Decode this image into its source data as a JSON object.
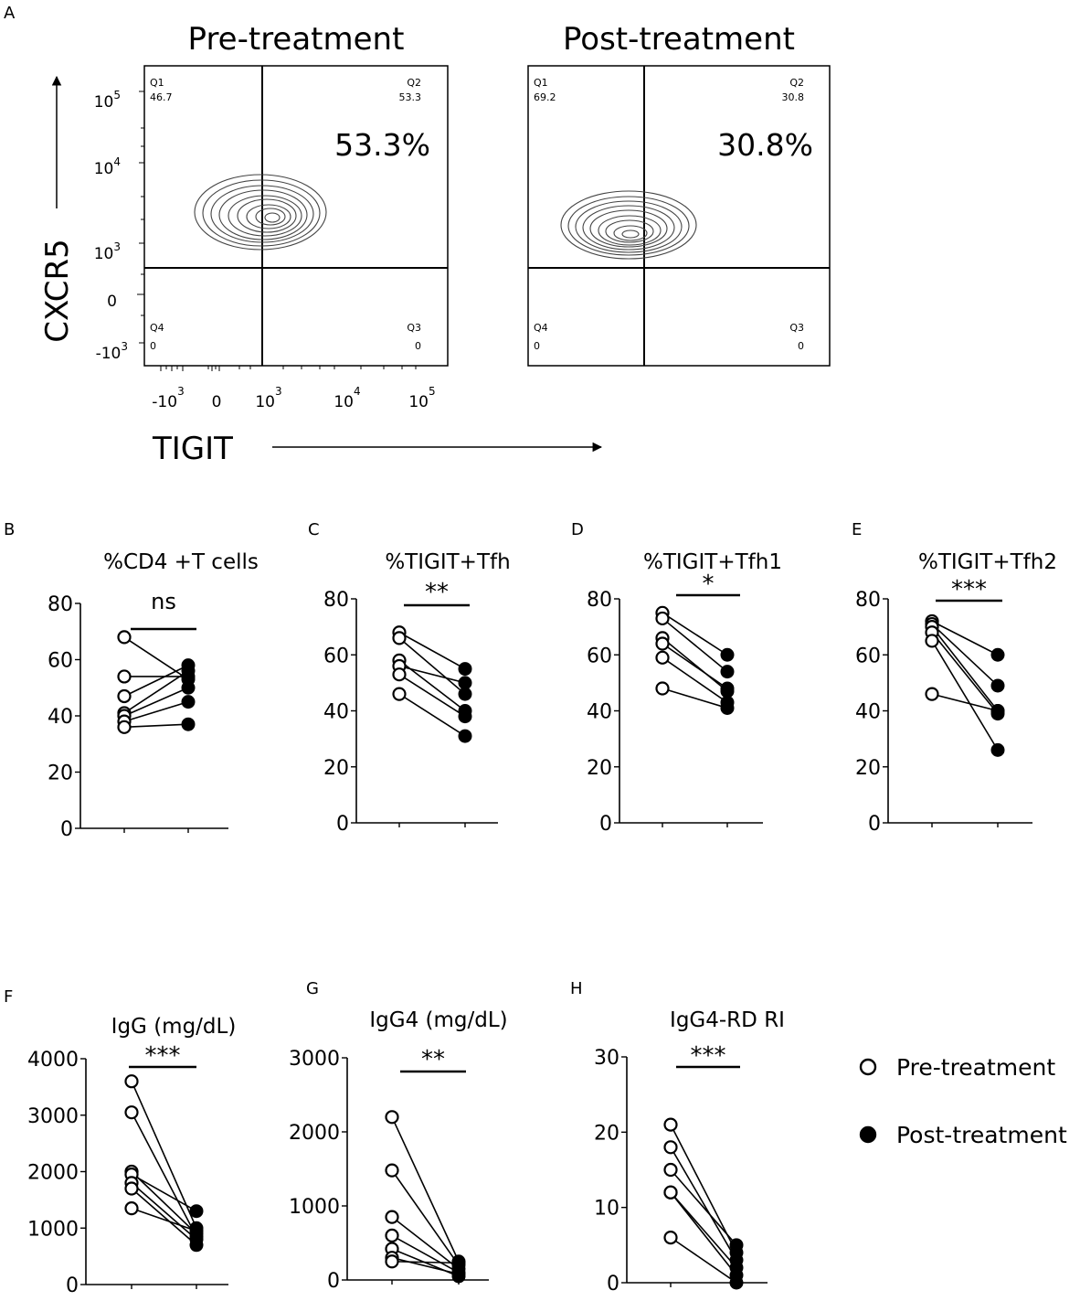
{
  "panel_a": {
    "letter": "A",
    "y_axis_label": "CXCR5",
    "x_axis_label": "TIGIT",
    "y_ticks": [
      {
        "base": "10",
        "exp": "5"
      },
      {
        "base": "10",
        "exp": "4"
      },
      {
        "base": "10",
        "exp": "3"
      },
      {
        "base": "0",
        "exp": ""
      },
      {
        "base": "-10",
        "exp": "3"
      }
    ],
    "x_ticks": [
      {
        "base": "-10",
        "exp": "3"
      },
      {
        "base": "0",
        "exp": ""
      },
      {
        "base": "10",
        "exp": "3"
      },
      {
        "base": "10",
        "exp": "4"
      },
      {
        "base": "10",
        "exp": "5"
      }
    ],
    "plots": [
      {
        "title": "Pre-treatment",
        "q1_label": "Q1",
        "q1_value": "46.7",
        "q2_label": "Q2",
        "q2_value": "53.3",
        "q3_label": "Q3",
        "q3_value": "0",
        "q4_label": "Q4",
        "q4_value": "0",
        "highlight": "53.3%"
      },
      {
        "title": "Post-treatment",
        "q1_label": "Q1",
        "q1_value": "69.2",
        "q2_label": "Q2",
        "q2_value": "30.8",
        "q3_label": "Q3",
        "q3_value": "0",
        "q4_label": "Q4",
        "q4_value": "0",
        "highlight": "30.8%"
      }
    ]
  },
  "legend": {
    "pre_label": "Pre-treatment",
    "post_label": "Post-treatment"
  },
  "chart_data": [
    {
      "letter": "B",
      "type": "scatter",
      "title": "%CD4 +T cells",
      "significance": "ns",
      "ylim": [
        0,
        80
      ],
      "yticks": [
        0,
        20,
        40,
        60,
        80
      ],
      "series": [
        {
          "name": "Pre-treatment",
          "values": [
            68,
            54,
            47,
            41,
            40,
            38,
            36
          ]
        },
        {
          "name": "Post-treatment",
          "values": [
            53,
            54,
            58,
            56,
            50,
            45,
            37
          ]
        }
      ]
    },
    {
      "letter": "C",
      "type": "scatter",
      "title": "%TIGIT+Tfh",
      "significance": "**",
      "ylim": [
        0,
        80
      ],
      "yticks": [
        0,
        20,
        40,
        60,
        80
      ],
      "series": [
        {
          "name": "Pre-treatment",
          "values": [
            68,
            66,
            58,
            56,
            53,
            46
          ]
        },
        {
          "name": "Post-treatment",
          "values": [
            55,
            46,
            40,
            50,
            38,
            31
          ]
        }
      ]
    },
    {
      "letter": "D",
      "type": "scatter",
      "title": "%TIGIT+Tfh1",
      "significance": "*",
      "ylim": [
        0,
        80
      ],
      "yticks": [
        0,
        20,
        40,
        60,
        80
      ],
      "series": [
        {
          "name": "Pre-treatment",
          "values": [
            75,
            73,
            66,
            64,
            59,
            48
          ]
        },
        {
          "name": "Post-treatment",
          "values": [
            60,
            54,
            47,
            48,
            43,
            41
          ]
        }
      ]
    },
    {
      "letter": "E",
      "type": "scatter",
      "title": "%TIGIT+Tfh2",
      "significance": "***",
      "ylim": [
        0,
        80
      ],
      "yticks": [
        0,
        20,
        40,
        60,
        80
      ],
      "series": [
        {
          "name": "Pre-treatment",
          "values": [
            72,
            71,
            70,
            68,
            65,
            46
          ]
        },
        {
          "name": "Post-treatment",
          "values": [
            60,
            49,
            40,
            39,
            26,
            40
          ]
        }
      ]
    },
    {
      "letter": "F",
      "type": "scatter",
      "title": "IgG (mg/dL)",
      "significance": "***",
      "ylim": [
        0,
        4000
      ],
      "yticks": [
        0,
        1000,
        2000,
        3000,
        4000
      ],
      "series": [
        {
          "name": "Pre-treatment",
          "values": [
            3600,
            3050,
            2000,
            1950,
            1800,
            1700,
            1350
          ]
        },
        {
          "name": "Post-treatment",
          "values": [
            1000,
            850,
            900,
            1300,
            800,
            700,
            950
          ]
        }
      ]
    },
    {
      "letter": "G",
      "type": "scatter",
      "title": "IgG4 (mg/dL)",
      "significance": "**",
      "ylim": [
        0,
        3000
      ],
      "yticks": [
        0,
        1000,
        2000,
        3000
      ],
      "series": [
        {
          "name": "Pre-treatment",
          "values": [
            2200,
            1480,
            850,
            600,
            420,
            300,
            250
          ]
        },
        {
          "name": "Post-treatment",
          "values": [
            250,
            200,
            150,
            100,
            50,
            80,
            230
          ]
        }
      ]
    },
    {
      "letter": "H",
      "type": "scatter",
      "title": "IgG4-RD RI",
      "significance": "***",
      "ylim": [
        0,
        30
      ],
      "yticks": [
        0,
        10,
        20,
        30
      ],
      "series": [
        {
          "name": "Pre-treatment",
          "values": [
            21,
            18,
            15,
            12,
            12,
            6
          ]
        },
        {
          "name": "Post-treatment",
          "values": [
            4,
            3,
            5,
            2,
            1,
            0
          ]
        }
      ]
    }
  ]
}
